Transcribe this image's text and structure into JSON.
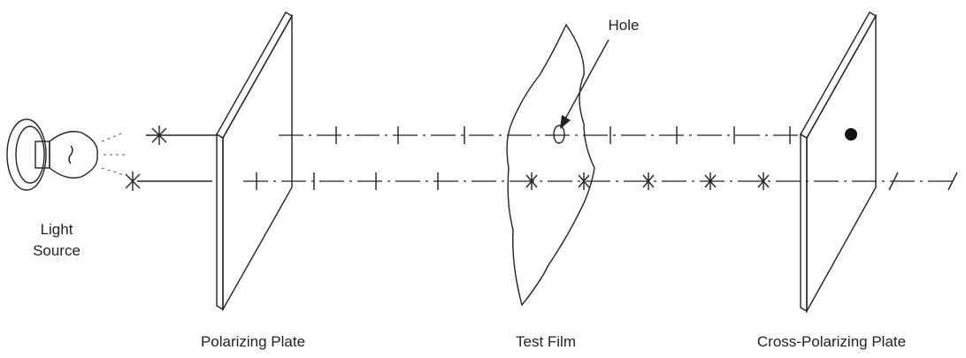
{
  "labels": {
    "hole": "Hole",
    "light_source": [
      "Light",
      "Source"
    ],
    "polarizing_plate": "Polarizing Plate",
    "test_film": "Test Film",
    "cross_polarizing_plate": "Cross-Polarizing Plate"
  }
}
